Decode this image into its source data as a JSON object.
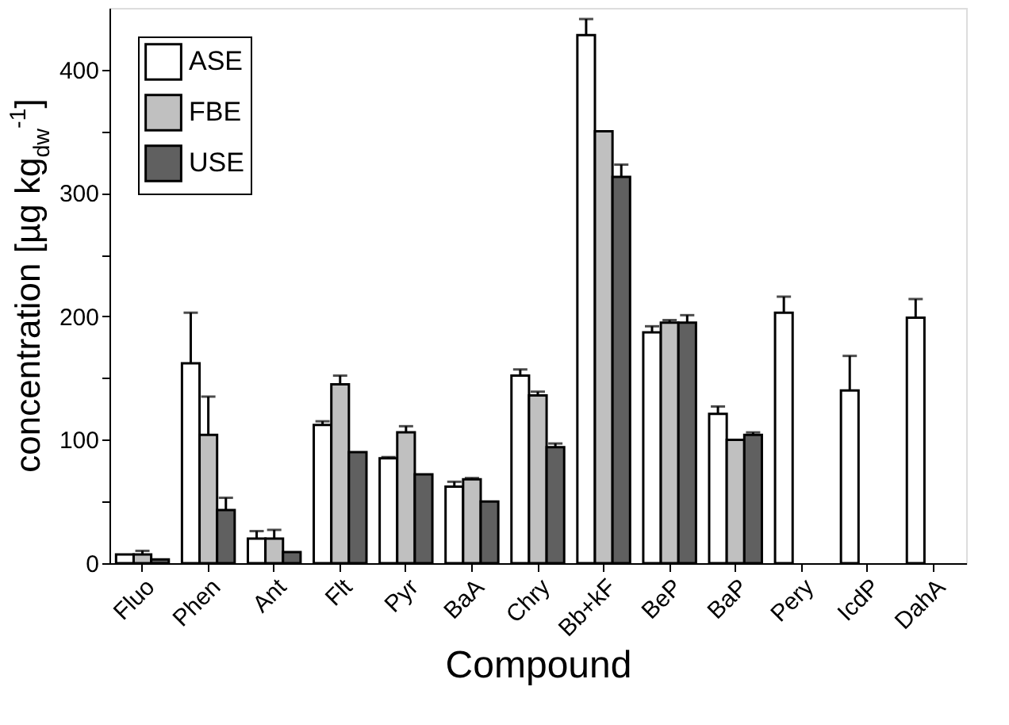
{
  "chart_data": {
    "type": "bar",
    "xlabel": "Compound",
    "ylabel": "concentration [µg kg$_{dw}$$^{-1}$]",
    "categories": [
      "Fluo",
      "Phen",
      "Ant",
      "Flt",
      "Pyr",
      "BaA",
      "Chry",
      "Bb+kF",
      "BeP",
      "BaP",
      "Pery",
      "IcdP",
      "DahA"
    ],
    "series": [
      {
        "name": "ASE",
        "color": "#ffffff",
        "values": [
          7,
          162,
          20,
          112,
          85,
          62,
          152,
          428,
          187,
          121,
          203,
          140,
          199
        ],
        "errors": [
          null,
          [
            162,
            203
          ],
          [
            20,
            26
          ],
          [
            112,
            115
          ],
          [
            85,
            86
          ],
          [
            62,
            66
          ],
          [
            152,
            157
          ],
          [
            428,
            441
          ],
          [
            187,
            192
          ],
          [
            121,
            127
          ],
          [
            203,
            216
          ],
          [
            140,
            168
          ],
          [
            199,
            214
          ]
        ]
      },
      {
        "name": "FBE",
        "color": "#c0c0c0",
        "values": [
          7,
          104,
          20,
          145,
          106,
          68,
          136,
          350,
          195,
          100,
          null,
          null,
          null
        ],
        "errors": [
          [
            7,
            10
          ],
          [
            104,
            135
          ],
          [
            20,
            27
          ],
          [
            145,
            152
          ],
          [
            106,
            111
          ],
          [
            68,
            69
          ],
          [
            136,
            139
          ],
          null,
          [
            195,
            197
          ],
          null,
          null,
          null,
          null
        ]
      },
      {
        "name": "USE",
        "color": "#606060",
        "values": [
          3,
          43,
          9,
          90,
          72,
          50,
          94,
          313,
          195,
          104,
          null,
          null,
          null
        ],
        "errors": [
          null,
          [
            43,
            53
          ],
          null,
          null,
          null,
          null,
          [
            94,
            97
          ],
          [
            313,
            323
          ],
          [
            195,
            201
          ],
          [
            104,
            106
          ],
          null,
          null,
          null
        ]
      }
    ],
    "ylim": [
      0,
      450
    ],
    "yticks": [
      0,
      {
        "value": 50,
        "label": null
      },
      100,
      {
        "value": 150,
        "label": null
      },
      200,
      {
        "value": 250,
        "label": null
      },
      300,
      {
        "value": 350,
        "label": null
      },
      400
    ],
    "grid": false,
    "legend": "top left"
  }
}
